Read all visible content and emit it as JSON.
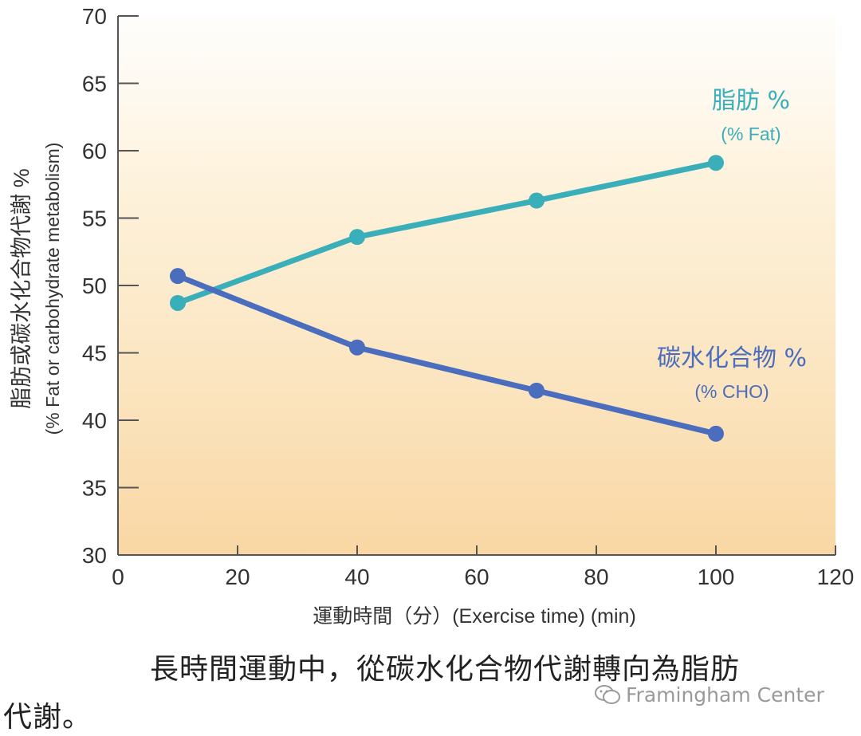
{
  "chart_data": {
    "type": "line",
    "x_ticks": [
      "0",
      "20",
      "40",
      "60",
      "80",
      "100",
      "120"
    ],
    "y_ticks": [
      "30",
      "35",
      "40",
      "45",
      "50",
      "55",
      "60",
      "65",
      "70"
    ],
    "xlim": [
      0,
      120
    ],
    "ylim": [
      30,
      70
    ],
    "xlabel": "運動時間（分）(Exercise time) (min)",
    "ylabel": "脂肪或碳水化合物代謝 %",
    "ylabel_en": "(% Fat or carbohydrate metabolism)",
    "series": [
      {
        "name": "脂肪 %",
        "name_en": "(% Fat)",
        "color": "#3aafb9",
        "x": [
          10,
          40,
          70,
          100
        ],
        "y": [
          48.7,
          53.6,
          56.3,
          59.1
        ]
      },
      {
        "name": "碳水化合物 %",
        "name_en": "(% CHO)",
        "color": "#4a6dbd",
        "x": [
          10,
          40,
          70,
          100
        ],
        "y": [
          50.7,
          45.4,
          42.2,
          39.0
        ]
      }
    ]
  },
  "caption": {
    "line1": "長時間運動中，從碳水化合物代謝轉向為脂肪",
    "line2": "代謝。"
  },
  "watermark": "Framingham Center",
  "watermark_icon": "wechat-icon"
}
